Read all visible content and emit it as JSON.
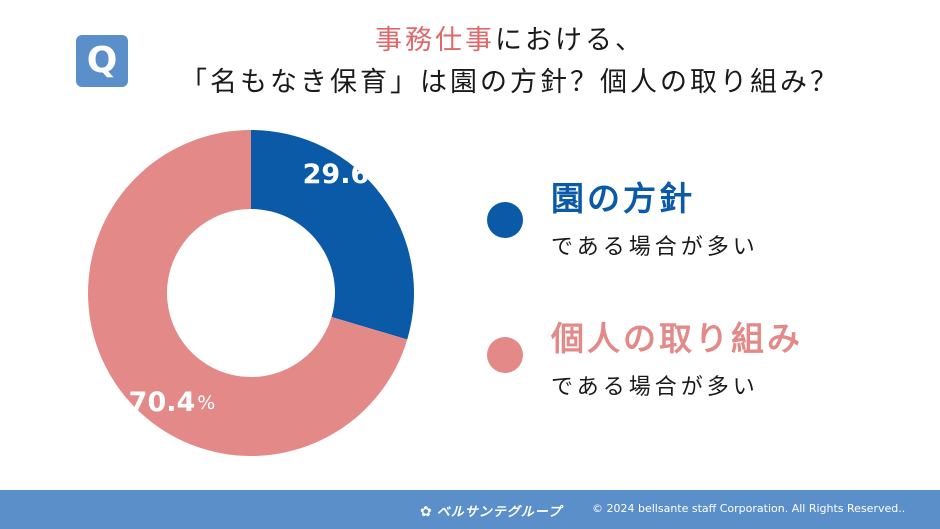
{
  "badge": {
    "letter": "Q"
  },
  "title": {
    "line1_accent": "事務仕事",
    "line1_rest": "における、",
    "line2": "「名もなき保育」は園の方針？個人の取り組み？"
  },
  "chart_data": {
    "type": "pie",
    "variant": "donut",
    "categories": [
      "園の方針である場合が多い",
      "個人の取り組みである場合が多い"
    ],
    "values": [
      29.6,
      70.4
    ],
    "value_labels": [
      "29.6",
      "70.4"
    ],
    "unit": "%",
    "colors": [
      "#0a5aa8",
      "#e38a89"
    ],
    "legend_position": "right"
  },
  "legend": [
    {
      "label": "園の方針",
      "sub": "である場合が多い",
      "color": "#0a5aa8"
    },
    {
      "label": "個人の取り組み",
      "sub": "である場合が多い",
      "color": "#e38a89"
    }
  ],
  "footer": {
    "logo_mark": "✿",
    "logo_text": "ベルサンテグループ",
    "copyright": "© 2024 bellsante staff Corporation. All Rights Reserved.."
  },
  "colors": {
    "accent": "#e0686a",
    "brand": "#5b8fc9"
  }
}
